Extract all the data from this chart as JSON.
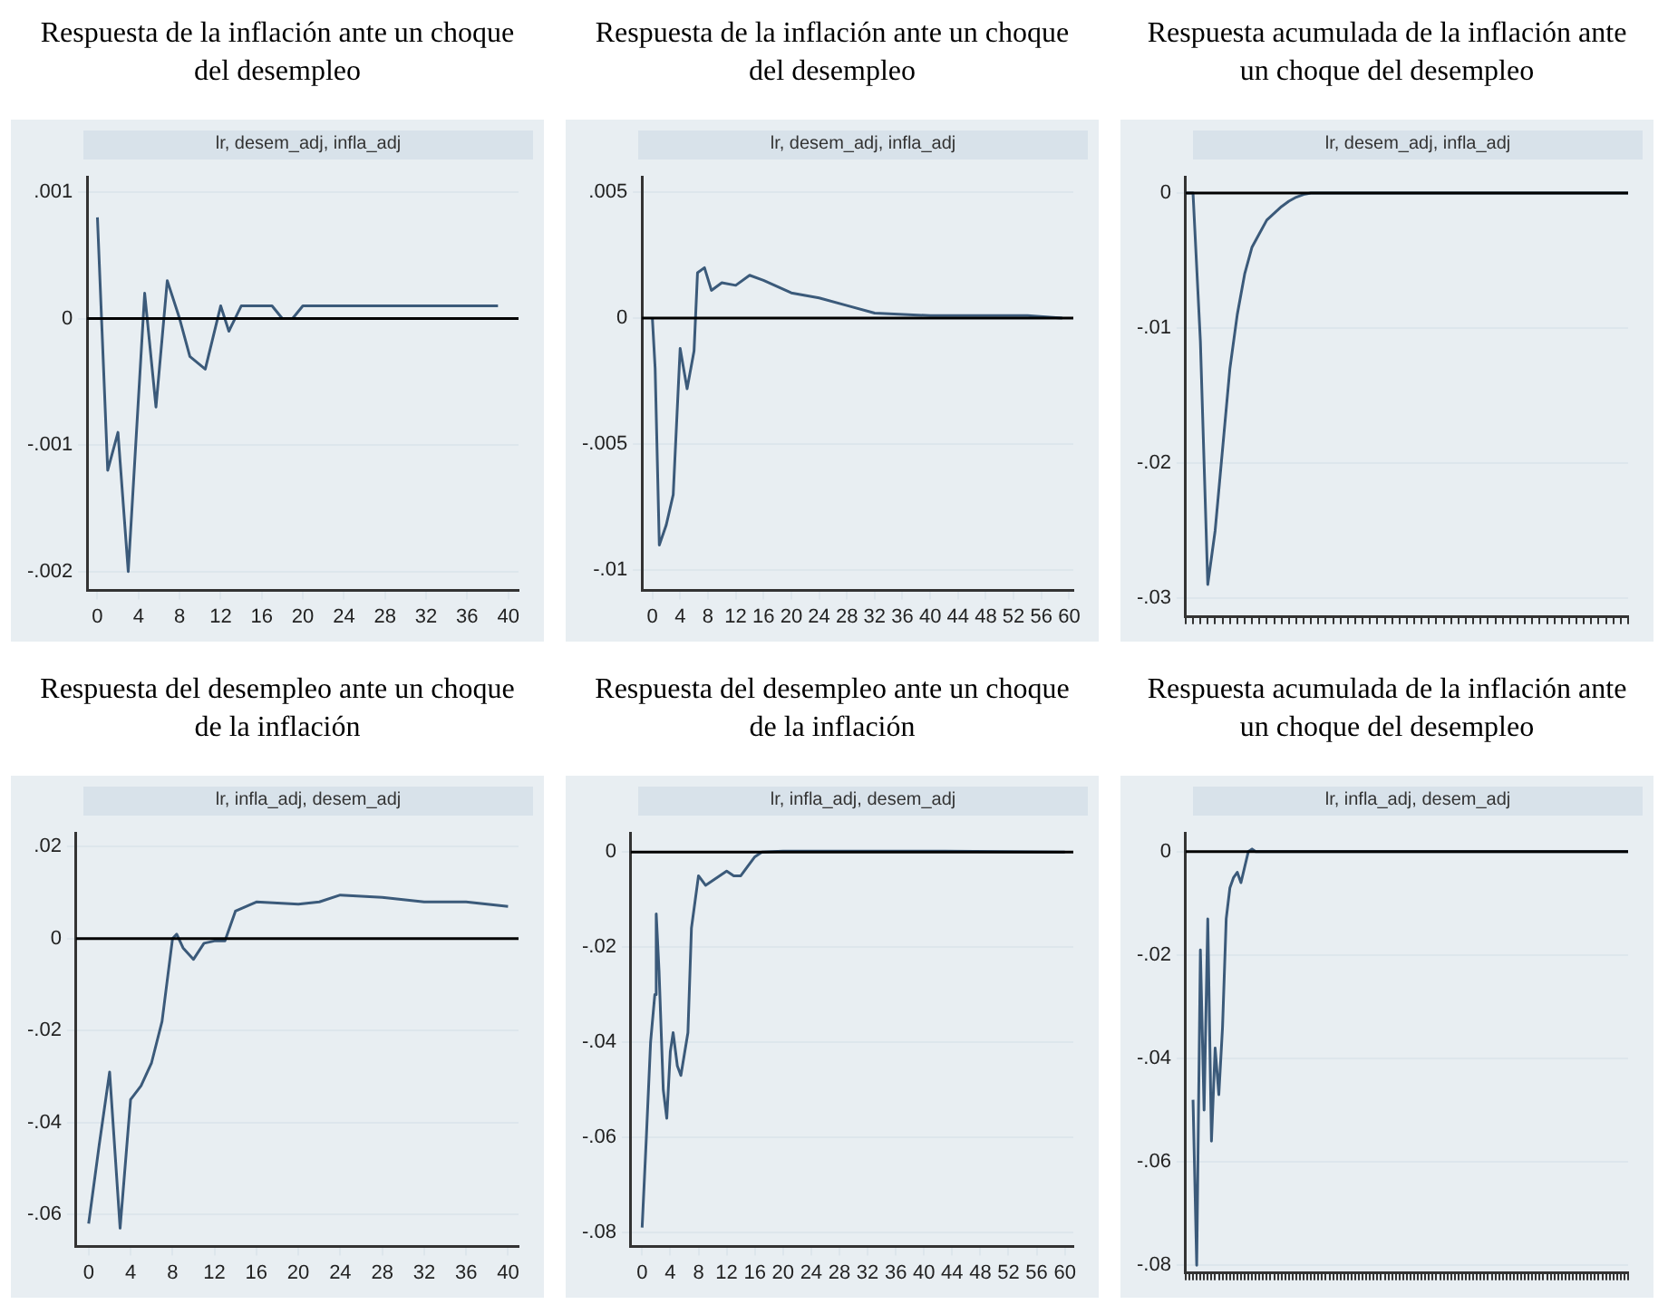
{
  "chart_data": [
    {
      "type": "line",
      "title": "Respuesta de la inflación ante un choque del desempleo",
      "subtitle": "lr, desem_adj, infla_adj",
      "grid": "y",
      "marker": "none",
      "line_style": "solid",
      "legend": false,
      "x": [
        0,
        1,
        2,
        3,
        4.6,
        5.7,
        6.8,
        8,
        9,
        10.5,
        12,
        12.8,
        14,
        15,
        17,
        18,
        19,
        20,
        24,
        28,
        32,
        36,
        39
      ],
      "values": [
        0.0008,
        -0.0012,
        -0.0009,
        -0.002,
        0.0002,
        -0.0007,
        0.0003,
        0,
        -0.0003,
        -0.0004,
        0.0001,
        -0.0001,
        0.0001,
        0.0001,
        0.0001,
        0,
        0,
        0.0001,
        0.0001,
        0.0001,
        0.0001,
        0.0001,
        0.0001
      ],
      "color": "#3b5a7a",
      "xlim": [
        -1,
        41
      ],
      "xticks": [
        0,
        4,
        8,
        12,
        16,
        20,
        24,
        28,
        32,
        36,
        40
      ],
      "ylim": [
        -0.00215,
        0.00112
      ],
      "yticks": [
        {
          "value": -0.002,
          "label": "-.002"
        },
        {
          "value": -0.001,
          "label": "-.001"
        },
        {
          "value": 0,
          "label": "0"
        },
        {
          "value": 0.001,
          "label": ".001"
        }
      ],
      "ref_lines": [
        {
          "axis": "y",
          "value": 0,
          "color": "#000000"
        }
      ]
    },
    {
      "type": "line",
      "title": "Respuesta de la inflación ante un choque del desempleo",
      "subtitle": "lr, desem_adj, infla_adj",
      "grid": "y",
      "marker": "none",
      "line_style": "solid",
      "legend": false,
      "x": [
        0,
        0.4,
        1,
        2,
        3,
        4,
        5,
        6,
        6.5,
        7.5,
        8.5,
        10,
        12,
        14,
        16,
        20,
        24,
        28,
        32,
        40,
        54,
        59
      ],
      "values": [
        0,
        -0.002,
        -0.009,
        -0.0082,
        -0.007,
        -0.0012,
        -0.0028,
        -0.0013,
        0.0018,
        0.002,
        0.0011,
        0.0014,
        0.0013,
        0.0017,
        0.0015,
        0.001,
        0.0008,
        0.0005,
        0.0002,
        0.0001,
        0.0001,
        0
      ],
      "color": "#3b5a7a",
      "xlim": [
        -1.5,
        60.6
      ],
      "xticks": [
        0,
        4,
        8,
        12,
        16,
        20,
        24,
        28,
        32,
        36,
        40,
        44,
        48,
        52,
        56,
        60
      ],
      "ylim": [
        -0.0108,
        0.0056
      ],
      "yticks": [
        {
          "value": -0.01,
          "label": "-.01"
        },
        {
          "value": -0.005,
          "label": "-.005"
        },
        {
          "value": 0,
          "label": "0"
        },
        {
          "value": 0.005,
          "label": ".005"
        }
      ],
      "ref_lines": [
        {
          "axis": "y",
          "value": 0,
          "color": "#000000"
        }
      ]
    },
    {
      "type": "line",
      "title": "Respuesta acumulada de la inflación ante un choque del desempleo",
      "subtitle": "lr, desem_adj, infla_adj",
      "grid": "y",
      "marker": "none",
      "line_style": "solid",
      "legend": false,
      "tick_labels": "y",
      "categories": [
        null,
        null,
        null,
        null,
        null,
        null,
        null,
        null,
        null,
        null,
        null,
        null,
        null,
        null,
        null,
        null,
        null,
        null,
        null,
        null,
        null,
        null,
        null,
        null,
        null,
        null,
        null,
        null,
        null,
        null,
        null,
        null,
        null,
        null,
        null,
        null,
        null,
        null,
        null,
        null,
        null,
        null,
        null,
        null,
        null,
        null,
        null,
        null,
        null,
        null,
        null,
        null,
        null,
        null,
        null,
        null,
        null,
        null,
        null,
        null,
        null
      ],
      "values": [
        0,
        0,
        -0.011,
        -0.029,
        -0.025,
        -0.019,
        -0.013,
        -0.009,
        -0.006,
        -0.004,
        -0.003,
        -0.002,
        -0.0015,
        -0.001,
        -0.0006,
        -0.0003,
        -0.0001,
        0,
        0,
        0,
        0,
        0,
        0,
        0,
        0,
        0,
        0,
        0,
        0,
        0,
        0,
        0,
        0,
        0,
        0,
        0,
        0,
        0,
        0,
        0,
        0,
        0,
        0,
        0,
        0,
        0,
        0,
        0,
        0,
        0,
        0,
        0,
        0,
        0,
        0,
        0,
        0,
        0,
        0,
        0,
        0
      ],
      "color": "#3b5a7a",
      "ylim": [
        -0.0314,
        0.0012
      ],
      "yticks": [
        {
          "value": -0.03,
          "label": "-.03"
        },
        {
          "value": -0.02,
          "label": "-.02"
        },
        {
          "value": -0.01,
          "label": "-.01"
        },
        {
          "value": 0,
          "label": "0"
        }
      ],
      "ref_lines": [
        {
          "axis": "y",
          "value": 0,
          "color": "#000000"
        }
      ]
    },
    {
      "type": "line",
      "title": "Respuesta del desempleo ante un choque de la inflación",
      "subtitle": "lr, infla_adj, desem_adj",
      "grid": "y",
      "marker": "none",
      "line_style": "solid",
      "legend": false,
      "x": [
        0,
        1,
        2,
        3,
        4,
        5,
        6,
        7,
        8,
        8.4,
        9,
        10,
        11,
        12,
        13,
        14,
        15,
        16,
        20,
        22,
        24,
        28,
        32,
        36,
        40
      ],
      "values": [
        -0.062,
        -0.045,
        -0.029,
        -0.063,
        -0.035,
        -0.032,
        -0.027,
        -0.018,
        0,
        0.001,
        -0.002,
        -0.0045,
        -0.001,
        -0.0005,
        -0.0005,
        0.006,
        0.007,
        0.008,
        0.0075,
        0.008,
        0.0095,
        0.009,
        0.008,
        0.008,
        0.007
      ],
      "color": "#3b5a7a",
      "xlim": [
        -1.2,
        41
      ],
      "xticks": [
        0,
        4,
        8,
        12,
        16,
        20,
        24,
        28,
        32,
        36,
        40
      ],
      "ylim": [
        -0.067,
        0.023
      ],
      "yticks": [
        {
          "value": -0.06,
          "label": "-.06"
        },
        {
          "value": -0.04,
          "label": "-.04"
        },
        {
          "value": -0.02,
          "label": "-.02"
        },
        {
          "value": 0,
          "label": "0"
        },
        {
          "value": 0.02,
          "label": ".02"
        }
      ],
      "ref_lines": [
        {
          "axis": "y",
          "value": 0,
          "color": "#000000"
        }
      ]
    },
    {
      "type": "line",
      "title": "Respuesta del desempleo ante un choque de la inflación",
      "subtitle": "lr, infla_adj, desem_adj",
      "grid": "y",
      "marker": "none",
      "line_style": "solid",
      "legend": false,
      "x": [
        0,
        0.6,
        1.2,
        1.8,
        2,
        2.4,
        3,
        3.5,
        4,
        4.4,
        5,
        5.5,
        6.5,
        7,
        8,
        9,
        11,
        12,
        13,
        14,
        16,
        17,
        20,
        43,
        60
      ],
      "values": [
        -0.079,
        -0.06,
        -0.04,
        -0.03,
        -0.013,
        -0.025,
        -0.05,
        -0.056,
        -0.042,
        -0.038,
        -0.045,
        -0.047,
        -0.038,
        -0.016,
        -0.005,
        -0.007,
        -0.005,
        -0.004,
        -0.005,
        -0.005,
        -0.001,
        0,
        0.0002,
        0.0002,
        0
      ],
      "color": "#3b5a7a",
      "xlim": [
        -1.6,
        61.2
      ],
      "xticks": [
        0,
        4,
        8,
        12,
        16,
        20,
        24,
        28,
        32,
        36,
        40,
        44,
        48,
        52,
        56,
        60
      ],
      "ylim": [
        -0.083,
        0.004
      ],
      "yticks": [
        {
          "value": -0.08,
          "label": "-.08"
        },
        {
          "value": -0.06,
          "label": "-.06"
        },
        {
          "value": -0.04,
          "label": "-.04"
        },
        {
          "value": -0.02,
          "label": "-.02"
        },
        {
          "value": 0,
          "label": "0"
        }
      ],
      "ref_lines": [
        {
          "axis": "y",
          "value": 0,
          "color": "#000000"
        }
      ]
    },
    {
      "type": "line",
      "title": "Respuesta acumulada de la inflación ante un choque del desempleo",
      "subtitle": "lr, infla_adj, desem_adj",
      "grid": "y",
      "marker": "none",
      "line_style": "solid",
      "legend": false,
      "tick_labels": "y",
      "categories": [
        null,
        null,
        null,
        null,
        null,
        null,
        null,
        null,
        null,
        null,
        null,
        null,
        null,
        null,
        null,
        null,
        null,
        null,
        null,
        null,
        null,
        null,
        null,
        null,
        null,
        null,
        null,
        null,
        null,
        null,
        null,
        null,
        null,
        null,
        null,
        null,
        null,
        null,
        null,
        null,
        null,
        null,
        null,
        null,
        null,
        null,
        null,
        null,
        null,
        null,
        null,
        null,
        null,
        null,
        null,
        null,
        null,
        null,
        null,
        null,
        null,
        null,
        null,
        null,
        null,
        null,
        null,
        null,
        null,
        null,
        null,
        null,
        null,
        null,
        null,
        null,
        null,
        null,
        null,
        null,
        null,
        null,
        null,
        null,
        null,
        null,
        null,
        null,
        null,
        null,
        null,
        null,
        null,
        null,
        null,
        null,
        null,
        null,
        null,
        null,
        null,
        null,
        null,
        null,
        null,
        null,
        null,
        null,
        null,
        null,
        null,
        null,
        null,
        null,
        null,
        null,
        null,
        null,
        null,
        null,
        null
      ],
      "values": [
        null,
        null,
        -0.048,
        -0.08,
        -0.019,
        -0.05,
        -0.013,
        -0.056,
        -0.038,
        -0.047,
        -0.034,
        -0.013,
        -0.007,
        -0.005,
        -0.004,
        -0.006,
        -0.003,
        0,
        0.0005,
        0,
        0,
        0,
        0,
        0,
        0,
        0,
        0,
        0,
        0,
        0,
        0,
        0,
        0,
        0,
        0,
        0,
        0,
        0,
        0,
        0,
        0,
        0,
        0,
        0,
        0,
        0,
        0,
        0,
        0,
        0,
        0,
        0,
        0,
        0,
        0,
        0,
        0,
        0,
        0,
        0,
        0,
        0,
        0,
        0,
        0,
        0,
        0,
        0,
        0,
        0,
        0,
        0,
        0,
        0,
        0,
        0,
        0,
        0,
        0,
        0,
        0,
        0,
        0,
        0,
        0,
        0,
        0,
        0,
        0,
        0,
        0,
        0,
        0,
        0,
        0,
        0,
        0,
        0,
        0,
        0,
        0,
        0,
        0,
        0,
        0,
        0,
        0,
        0,
        0,
        0,
        0,
        0,
        0,
        0,
        0,
        0,
        0,
        0,
        0,
        0,
        0
      ],
      "color": "#3b5a7a",
      "ylim": [
        -0.0815,
        0.0036
      ],
      "yticks": [
        {
          "value": -0.08,
          "label": "-.08"
        },
        {
          "value": -0.06,
          "label": "-.06"
        },
        {
          "value": -0.04,
          "label": "-.04"
        },
        {
          "value": -0.02,
          "label": "-.02"
        },
        {
          "value": 0,
          "label": "0"
        }
      ],
      "ref_lines": [
        {
          "axis": "y",
          "value": 0,
          "color": "#000000"
        }
      ]
    }
  ]
}
